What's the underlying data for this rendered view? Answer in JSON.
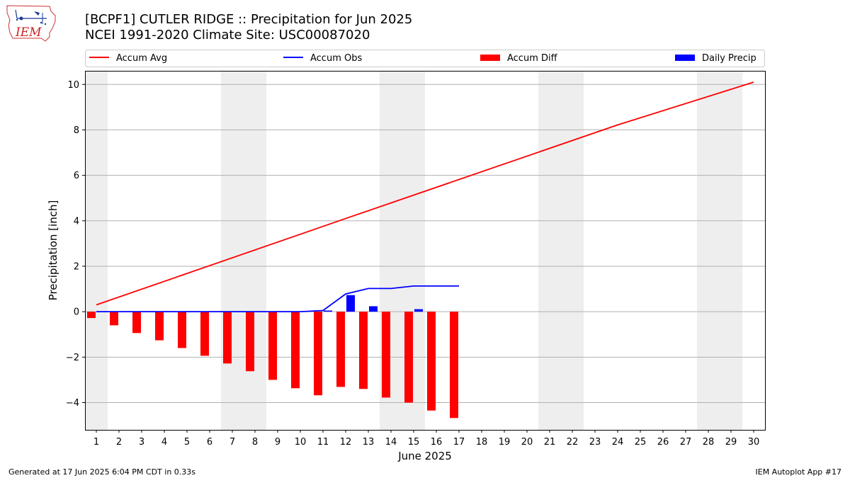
{
  "header": {
    "title_line1": "[BCPF1] CUTLER RIDGE :: Precipitation for Jun 2025",
    "title_line2": "NCEI 1991-2020 Climate Site: USC00087020"
  },
  "logo": {
    "text": "IEM",
    "icon": "iem-iowa-logo"
  },
  "footer": {
    "generated": "Generated at 17 Jun 2025 6:04 PM CDT in 0.33s",
    "app": "IEM Autoplot App #17"
  },
  "colors": {
    "accum_avg": "#ff0000",
    "accum_obs": "#0000ff",
    "accum_diff": "#ff0000",
    "daily_precip": "#0000ff",
    "weekend_shade": "#eeeeee",
    "grid": "#b0b0b0"
  },
  "chart_data": {
    "type": "bar",
    "xlabel": "June 2025",
    "ylabel": "Precipitation [inch]",
    "ylim": [
      -5.2,
      10.6
    ],
    "xlim": [
      0.5,
      30.5
    ],
    "yticks": [
      -4,
      -2,
      0,
      2,
      4,
      6,
      8,
      10
    ],
    "ytick_labels": [
      "−4",
      "−2",
      "0",
      "2",
      "4",
      "6",
      "8",
      "10"
    ],
    "days": [
      1,
      2,
      3,
      4,
      5,
      6,
      7,
      8,
      9,
      10,
      11,
      12,
      13,
      14,
      15,
      16,
      17,
      18,
      19,
      20,
      21,
      22,
      23,
      24,
      25,
      26,
      27,
      28,
      29,
      30
    ],
    "grid": "horizontal",
    "legend_position": "top",
    "weekend_bands": [
      [
        0.5,
        1.5
      ],
      [
        6.5,
        8.5
      ],
      [
        13.5,
        15.5
      ],
      [
        20.5,
        22.5
      ],
      [
        27.5,
        29.5
      ]
    ],
    "legend": [
      "Accum Avg",
      "Accum Obs",
      "Accum Diff",
      "Daily Precip"
    ],
    "series": [
      {
        "name": "Accum Avg",
        "kind": "line",
        "x": [
          1,
          12,
          24,
          30
        ],
        "values": [
          0.3,
          4.1,
          8.22,
          10.1
        ]
      },
      {
        "name": "Accum Obs",
        "kind": "line",
        "x": [
          1,
          2,
          3,
          4,
          5,
          6,
          7,
          8,
          9,
          10,
          11,
          12,
          13,
          14,
          15,
          16,
          17
        ],
        "values": [
          0,
          0,
          0,
          0,
          0,
          0,
          0,
          0,
          0,
          0,
          0.05,
          0.78,
          1.02,
          1.02,
          1.13,
          1.13,
          1.13
        ]
      },
      {
        "name": "Accum Diff",
        "kind": "bar",
        "x": [
          1,
          2,
          3,
          4,
          5,
          6,
          7,
          8,
          9,
          10,
          11,
          12,
          13,
          14,
          15,
          16,
          17
        ],
        "values": [
          -0.28,
          -0.6,
          -0.94,
          -1.26,
          -1.6,
          -1.94,
          -2.28,
          -2.62,
          -3.0,
          -3.37,
          -3.68,
          -3.31,
          -3.4,
          -3.78,
          -4.0,
          -4.35,
          -4.68
        ]
      },
      {
        "name": "Daily Precip",
        "kind": "bar",
        "x": [
          11,
          12,
          13,
          15
        ],
        "values": [
          0.05,
          0.73,
          0.24,
          0.11
        ]
      }
    ]
  }
}
